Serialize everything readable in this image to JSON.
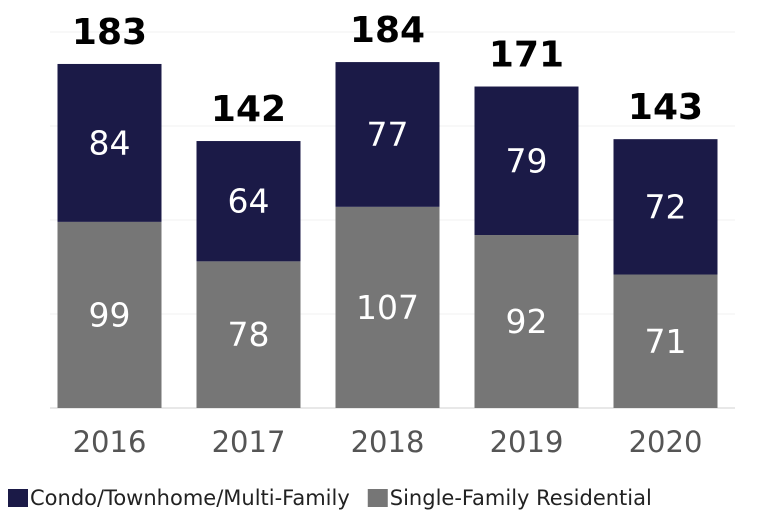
{
  "chart_data": {
    "type": "stacked-bar",
    "categories": [
      "2016",
      "2017",
      "2018",
      "2019",
      "2020"
    ],
    "series": [
      {
        "name": "Condo/Townhome/Multi-Family",
        "color": "#1b1a47",
        "values": [
          84,
          64,
          77,
          79,
          72
        ]
      },
      {
        "name": "Single-Family Residential",
        "color": "#767676",
        "values": [
          99,
          78,
          107,
          92,
          71
        ]
      }
    ],
    "totals": [
      183,
      142,
      184,
      171,
      143
    ],
    "ylim": [
      0,
      200
    ],
    "yticks": [
      0,
      50,
      100,
      150,
      200
    ],
    "grid": true
  }
}
